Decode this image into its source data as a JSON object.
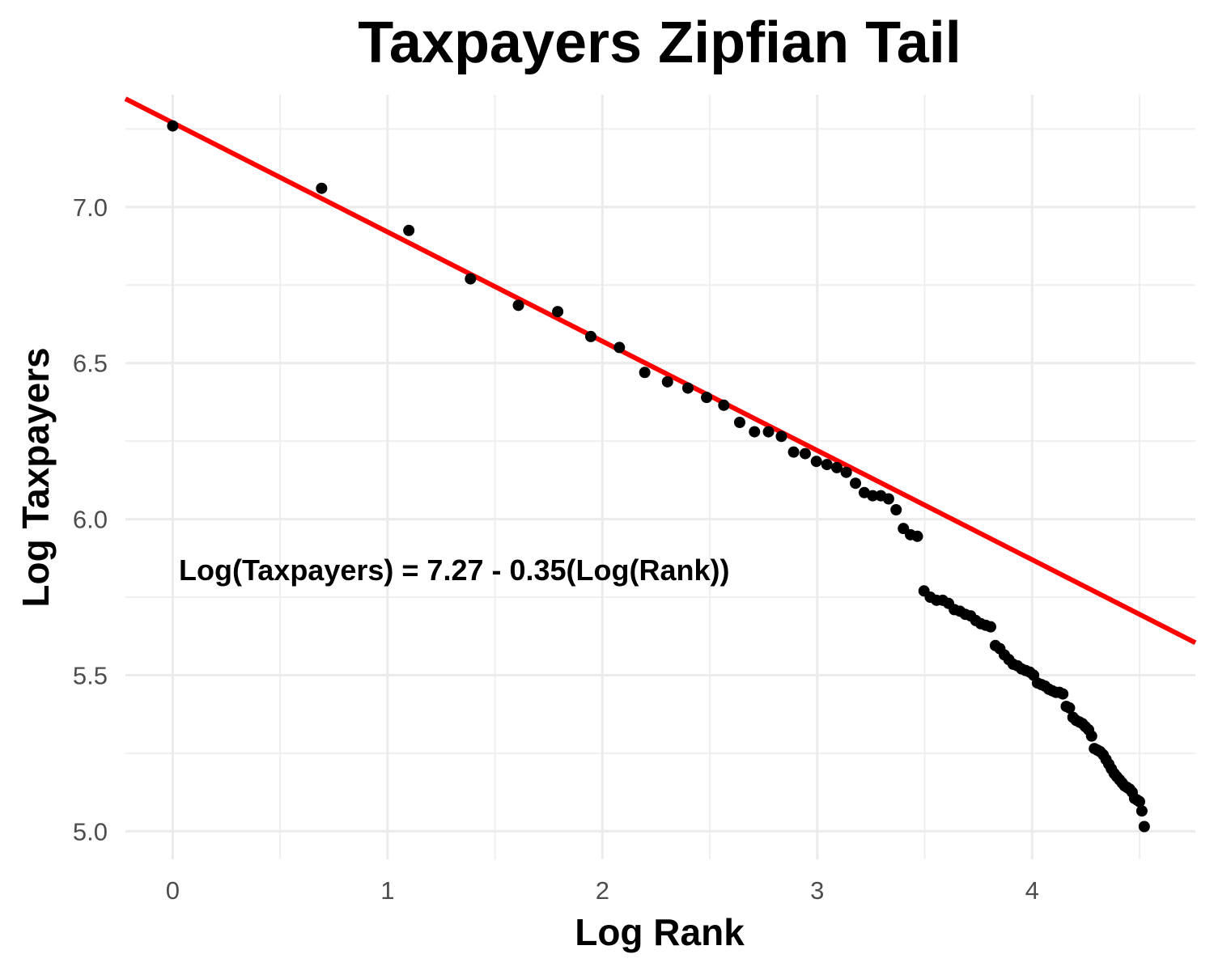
{
  "chart_data": {
    "type": "scatter",
    "title": "Taxpayers Zipfian Tail",
    "xlabel": "Log Rank",
    "ylabel": "Log Taxpayers",
    "xlim": [
      -0.22,
      4.76
    ],
    "ylim": [
      4.91,
      7.36
    ],
    "x_ticks": [
      0,
      1,
      2,
      3,
      4
    ],
    "x_tick_labels": [
      "0",
      "1",
      "2",
      "3",
      "4"
    ],
    "y_ticks": [
      5.0,
      5.5,
      6.0,
      6.5,
      7.0
    ],
    "y_tick_labels": [
      "5.0",
      "5.5",
      "6.0",
      "6.5",
      "7.0"
    ],
    "grid": true,
    "annotation": "Log(Taxpayers) = 7.27 - 0.35(Log(Rank))",
    "fit_line": {
      "intercept": 7.27,
      "slope": -0.35,
      "color": "#ff0000"
    },
    "point_color": "#000000",
    "points": [
      [
        0.0,
        7.26
      ],
      [
        0.693,
        7.06
      ],
      [
        1.099,
        6.925
      ],
      [
        1.386,
        6.77
      ],
      [
        1.609,
        6.685
      ],
      [
        1.792,
        6.665
      ],
      [
        1.946,
        6.585
      ],
      [
        2.079,
        6.55
      ],
      [
        2.197,
        6.47
      ],
      [
        2.303,
        6.44
      ],
      [
        2.398,
        6.42
      ],
      [
        2.485,
        6.39
      ],
      [
        2.565,
        6.365
      ],
      [
        2.639,
        6.31
      ],
      [
        2.708,
        6.28
      ],
      [
        2.773,
        6.28
      ],
      [
        2.833,
        6.265
      ],
      [
        2.89,
        6.215
      ],
      [
        2.944,
        6.21
      ],
      [
        2.996,
        6.185
      ],
      [
        3.045,
        6.175
      ],
      [
        3.091,
        6.165
      ],
      [
        3.135,
        6.15
      ],
      [
        3.178,
        6.115
      ],
      [
        3.219,
        6.085
      ],
      [
        3.258,
        6.075
      ],
      [
        3.296,
        6.075
      ],
      [
        3.332,
        6.065
      ],
      [
        3.367,
        6.03
      ],
      [
        3.401,
        5.97
      ],
      [
        3.434,
        5.95
      ],
      [
        3.466,
        5.945
      ],
      [
        3.497,
        5.77
      ],
      [
        3.526,
        5.75
      ],
      [
        3.555,
        5.74
      ],
      [
        3.584,
        5.74
      ],
      [
        3.611,
        5.73
      ],
      [
        3.638,
        5.71
      ],
      [
        3.664,
        5.705
      ],
      [
        3.689,
        5.695
      ],
      [
        3.714,
        5.69
      ],
      [
        3.738,
        5.675
      ],
      [
        3.761,
        5.665
      ],
      [
        3.784,
        5.66
      ],
      [
        3.807,
        5.655
      ],
      [
        3.829,
        5.595
      ],
      [
        3.85,
        5.585
      ],
      [
        3.871,
        5.565
      ],
      [
        3.892,
        5.55
      ],
      [
        3.912,
        5.535
      ],
      [
        3.932,
        5.53
      ],
      [
        3.951,
        5.52
      ],
      [
        3.97,
        5.515
      ],
      [
        3.989,
        5.51
      ],
      [
        4.007,
        5.5
      ],
      [
        4.025,
        5.475
      ],
      [
        4.043,
        5.47
      ],
      [
        4.06,
        5.465
      ],
      [
        4.078,
        5.455
      ],
      [
        4.094,
        5.45
      ],
      [
        4.111,
        5.445
      ],
      [
        4.127,
        5.445
      ],
      [
        4.143,
        5.44
      ],
      [
        4.159,
        5.4
      ],
      [
        4.174,
        5.395
      ],
      [
        4.19,
        5.365
      ],
      [
        4.205,
        5.355
      ],
      [
        4.22,
        5.35
      ],
      [
        4.234,
        5.345
      ],
      [
        4.248,
        5.335
      ],
      [
        4.263,
        5.325
      ],
      [
        4.277,
        5.305
      ],
      [
        4.29,
        5.265
      ],
      [
        4.304,
        5.26
      ],
      [
        4.317,
        5.255
      ],
      [
        4.331,
        5.245
      ],
      [
        4.344,
        5.23
      ],
      [
        4.357,
        5.215
      ],
      [
        4.369,
        5.2
      ],
      [
        4.382,
        5.185
      ],
      [
        4.394,
        5.175
      ],
      [
        4.407,
        5.165
      ],
      [
        4.419,
        5.155
      ],
      [
        4.431,
        5.145
      ],
      [
        4.443,
        5.14
      ],
      [
        4.454,
        5.135
      ],
      [
        4.466,
        5.125
      ],
      [
        4.477,
        5.105
      ],
      [
        4.489,
        5.1
      ],
      [
        4.5,
        5.095
      ],
      [
        4.511,
        5.065
      ],
      [
        4.522,
        5.015
      ]
    ]
  }
}
